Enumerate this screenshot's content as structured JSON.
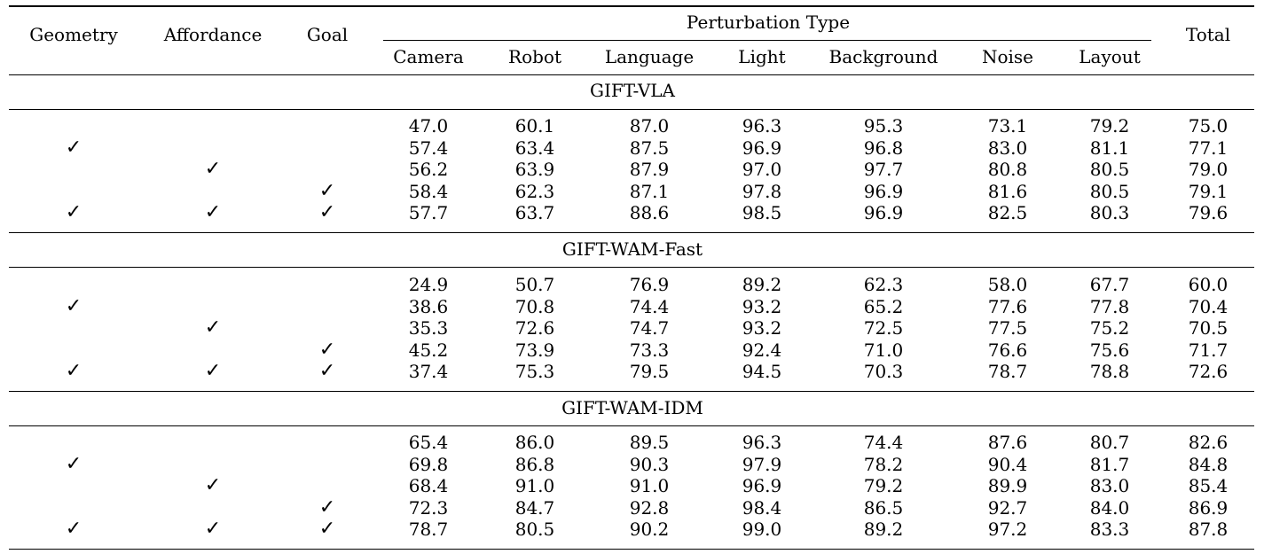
{
  "chart_data": {
    "type": "table",
    "header": {
      "flags": [
        "Geometry",
        "Affordance",
        "Goal"
      ],
      "perturbation_group": "Perturbation Type",
      "perturbations": [
        "Camera",
        "Robot",
        "Language",
        "Light",
        "Background",
        "Noise",
        "Layout"
      ],
      "total": "Total"
    },
    "check_symbol": "✓",
    "sections": [
      {
        "title": "GIFT-VLA",
        "rows": [
          {
            "flags": [
              false,
              false,
              false
            ],
            "values": [
              "47.0",
              "60.1",
              "87.0",
              "96.3",
              "95.3",
              "73.1",
              "79.2"
            ],
            "total": "75.0"
          },
          {
            "flags": [
              true,
              false,
              false
            ],
            "values": [
              "57.4",
              "63.4",
              "87.5",
              "96.9",
              "96.8",
              "83.0",
              "81.1"
            ],
            "total": "77.1"
          },
          {
            "flags": [
              false,
              true,
              false
            ],
            "values": [
              "56.2",
              "63.9",
              "87.9",
              "97.0",
              "97.7",
              "80.8",
              "80.5"
            ],
            "total": "79.0"
          },
          {
            "flags": [
              false,
              false,
              true
            ],
            "values": [
              "58.4",
              "62.3",
              "87.1",
              "97.8",
              "96.9",
              "81.6",
              "80.5"
            ],
            "total": "79.1"
          },
          {
            "flags": [
              true,
              true,
              true
            ],
            "values": [
              "57.7",
              "63.7",
              "88.6",
              "98.5",
              "96.9",
              "82.5",
              "80.3"
            ],
            "total": "79.6"
          }
        ]
      },
      {
        "title": "GIFT-WAM-Fast",
        "rows": [
          {
            "flags": [
              false,
              false,
              false
            ],
            "values": [
              "24.9",
              "50.7",
              "76.9",
              "89.2",
              "62.3",
              "58.0",
              "67.7"
            ],
            "total": "60.0"
          },
          {
            "flags": [
              true,
              false,
              false
            ],
            "values": [
              "38.6",
              "70.8",
              "74.4",
              "93.2",
              "65.2",
              "77.6",
              "77.8"
            ],
            "total": "70.4"
          },
          {
            "flags": [
              false,
              true,
              false
            ],
            "values": [
              "35.3",
              "72.6",
              "74.7",
              "93.2",
              "72.5",
              "77.5",
              "75.2"
            ],
            "total": "70.5"
          },
          {
            "flags": [
              false,
              false,
              true
            ],
            "values": [
              "45.2",
              "73.9",
              "73.3",
              "92.4",
              "71.0",
              "76.6",
              "75.6"
            ],
            "total": "71.7"
          },
          {
            "flags": [
              true,
              true,
              true
            ],
            "values": [
              "37.4",
              "75.3",
              "79.5",
              "94.5",
              "70.3",
              "78.7",
              "78.8"
            ],
            "total": "72.6"
          }
        ]
      },
      {
        "title": "GIFT-WAM-IDM",
        "rows": [
          {
            "flags": [
              false,
              false,
              false
            ],
            "values": [
              "65.4",
              "86.0",
              "89.5",
              "96.3",
              "74.4",
              "87.6",
              "80.7"
            ],
            "total": "82.6"
          },
          {
            "flags": [
              true,
              false,
              false
            ],
            "values": [
              "69.8",
              "86.8",
              "90.3",
              "97.9",
              "78.2",
              "90.4",
              "81.7"
            ],
            "total": "84.8"
          },
          {
            "flags": [
              false,
              true,
              false
            ],
            "values": [
              "68.4",
              "91.0",
              "91.0",
              "96.9",
              "79.2",
              "89.9",
              "83.0"
            ],
            "total": "85.4"
          },
          {
            "flags": [
              false,
              false,
              true
            ],
            "values": [
              "72.3",
              "84.7",
              "92.8",
              "98.4",
              "86.5",
              "92.7",
              "84.0"
            ],
            "total": "86.9"
          },
          {
            "flags": [
              true,
              true,
              true
            ],
            "values": [
              "78.7",
              "80.5",
              "90.2",
              "99.0",
              "89.2",
              "97.2",
              "83.3"
            ],
            "total": "87.8"
          }
        ]
      }
    ]
  }
}
